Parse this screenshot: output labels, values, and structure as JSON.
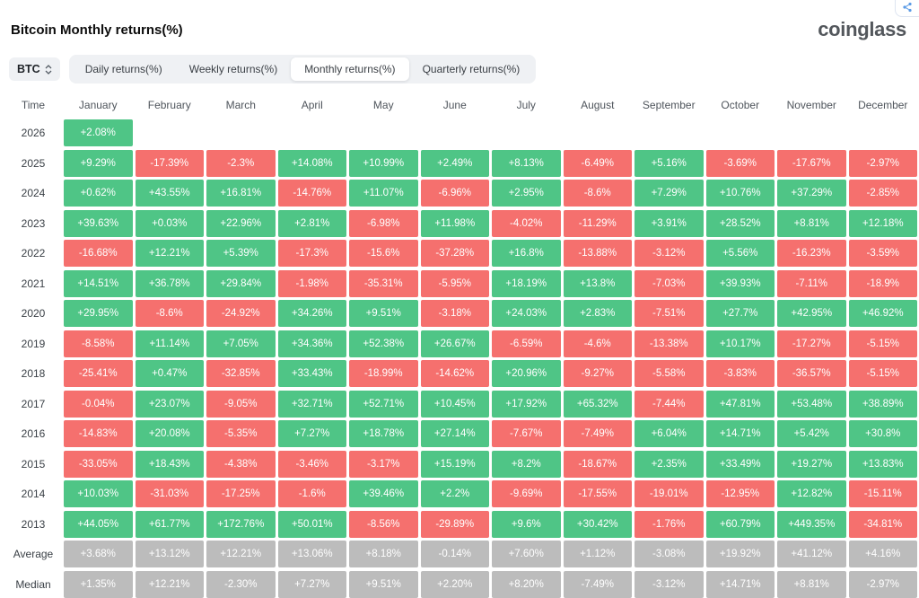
{
  "header": {
    "title": "Bitcoin Monthly returns(%)",
    "logo_text": "coinglass",
    "share_icon": "share-icon"
  },
  "controls": {
    "symbol": "BTC",
    "symbol_icon": "updown-chevrons-icon",
    "tabs": [
      {
        "label": "Daily returns(%)",
        "active": false
      },
      {
        "label": "Weekly returns(%)",
        "active": false
      },
      {
        "label": "Monthly returns(%)",
        "active": true
      },
      {
        "label": "Quarterly returns(%)",
        "active": false
      }
    ]
  },
  "chart_data": {
    "type": "heatmap",
    "title": "Bitcoin Monthly returns(%)",
    "columns": [
      "Time",
      "January",
      "February",
      "March",
      "April",
      "May",
      "June",
      "July",
      "August",
      "September",
      "October",
      "November",
      "December"
    ],
    "rows": [
      {
        "label": "2026",
        "kind": "year",
        "values": [
          "+2.08%",
          "",
          "",
          "",
          "",
          "",
          "",
          "",
          "",
          "",
          "",
          ""
        ]
      },
      {
        "label": "2025",
        "kind": "year",
        "values": [
          "+9.29%",
          "-17.39%",
          "-2.3%",
          "+14.08%",
          "+10.99%",
          "+2.49%",
          "+8.13%",
          "-6.49%",
          "+5.16%",
          "-3.69%",
          "-17.67%",
          "-2.97%"
        ]
      },
      {
        "label": "2024",
        "kind": "year",
        "values": [
          "+0.62%",
          "+43.55%",
          "+16.81%",
          "-14.76%",
          "+11.07%",
          "-6.96%",
          "+2.95%",
          "-8.6%",
          "+7.29%",
          "+10.76%",
          "+37.29%",
          "-2.85%"
        ]
      },
      {
        "label": "2023",
        "kind": "year",
        "values": [
          "+39.63%",
          "+0.03%",
          "+22.96%",
          "+2.81%",
          "-6.98%",
          "+11.98%",
          "-4.02%",
          "-11.29%",
          "+3.91%",
          "+28.52%",
          "+8.81%",
          "+12.18%"
        ]
      },
      {
        "label": "2022",
        "kind": "year",
        "values": [
          "-16.68%",
          "+12.21%",
          "+5.39%",
          "-17.3%",
          "-15.6%",
          "-37.28%",
          "+16.8%",
          "-13.88%",
          "-3.12%",
          "+5.56%",
          "-16.23%",
          "-3.59%"
        ]
      },
      {
        "label": "2021",
        "kind": "year",
        "values": [
          "+14.51%",
          "+36.78%",
          "+29.84%",
          "-1.98%",
          "-35.31%",
          "-5.95%",
          "+18.19%",
          "+13.8%",
          "-7.03%",
          "+39.93%",
          "-7.11%",
          "-18.9%"
        ]
      },
      {
        "label": "2020",
        "kind": "year",
        "values": [
          "+29.95%",
          "-8.6%",
          "-24.92%",
          "+34.26%",
          "+9.51%",
          "-3.18%",
          "+24.03%",
          "+2.83%",
          "-7.51%",
          "+27.7%",
          "+42.95%",
          "+46.92%"
        ]
      },
      {
        "label": "2019",
        "kind": "year",
        "values": [
          "-8.58%",
          "+11.14%",
          "+7.05%",
          "+34.36%",
          "+52.38%",
          "+26.67%",
          "-6.59%",
          "-4.6%",
          "-13.38%",
          "+10.17%",
          "-17.27%",
          "-5.15%"
        ]
      },
      {
        "label": "2018",
        "kind": "year",
        "values": [
          "-25.41%",
          "+0.47%",
          "-32.85%",
          "+33.43%",
          "-18.99%",
          "-14.62%",
          "+20.96%",
          "-9.27%",
          "-5.58%",
          "-3.83%",
          "-36.57%",
          "-5.15%"
        ]
      },
      {
        "label": "2017",
        "kind": "year",
        "values": [
          "-0.04%",
          "+23.07%",
          "-9.05%",
          "+32.71%",
          "+52.71%",
          "+10.45%",
          "+17.92%",
          "+65.32%",
          "-7.44%",
          "+47.81%",
          "+53.48%",
          "+38.89%"
        ]
      },
      {
        "label": "2016",
        "kind": "year",
        "values": [
          "-14.83%",
          "+20.08%",
          "-5.35%",
          "+7.27%",
          "+18.78%",
          "+27.14%",
          "-7.67%",
          "-7.49%",
          "+6.04%",
          "+14.71%",
          "+5.42%",
          "+30.8%"
        ]
      },
      {
        "label": "2015",
        "kind": "year",
        "values": [
          "-33.05%",
          "+18.43%",
          "-4.38%",
          "-3.46%",
          "-3.17%",
          "+15.19%",
          "+8.2%",
          "-18.67%",
          "+2.35%",
          "+33.49%",
          "+19.27%",
          "+13.83%"
        ]
      },
      {
        "label": "2014",
        "kind": "year",
        "values": [
          "+10.03%",
          "-31.03%",
          "-17.25%",
          "-1.6%",
          "+39.46%",
          "+2.2%",
          "-9.69%",
          "-17.55%",
          "-19.01%",
          "-12.95%",
          "+12.82%",
          "-15.11%"
        ]
      },
      {
        "label": "2013",
        "kind": "year",
        "values": [
          "+44.05%",
          "+61.77%",
          "+172.76%",
          "+50.01%",
          "-8.56%",
          "-29.89%",
          "+9.6%",
          "+30.42%",
          "-1.76%",
          "+60.79%",
          "+449.35%",
          "-34.81%"
        ]
      },
      {
        "label": "Average",
        "kind": "summary",
        "values": [
          "+3.68%",
          "+13.12%",
          "+12.21%",
          "+13.06%",
          "+8.18%",
          "-0.14%",
          "+7.60%",
          "+1.12%",
          "-3.08%",
          "+19.92%",
          "+41.12%",
          "+4.16%"
        ]
      },
      {
        "label": "Median",
        "kind": "summary",
        "values": [
          "+1.35%",
          "+12.21%",
          "-2.30%",
          "+7.27%",
          "+9.51%",
          "+2.20%",
          "+8.20%",
          "-7.49%",
          "-3.12%",
          "+14.71%",
          "+8.81%",
          "-2.97%"
        ]
      }
    ],
    "colors": {
      "positive": "#4fc586",
      "negative": "#f5706e",
      "summary": "#bcbcbc"
    },
    "legend_position": "none",
    "grid": false
  }
}
